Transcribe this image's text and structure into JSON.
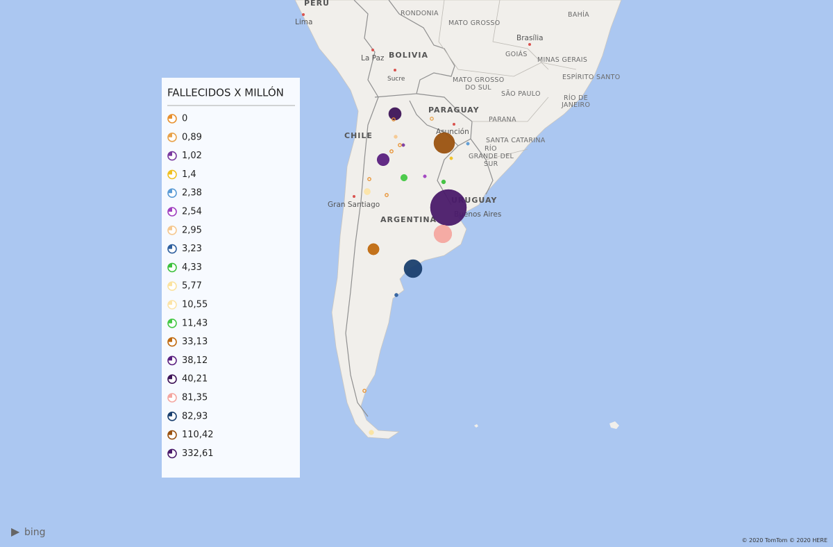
{
  "map_labels": [
    "PERU",
    "Lima",
    "RONDONIA",
    "MATO GROSSO",
    "BAHÍA",
    "Brasília",
    "GOIÁS",
    "MINAS GERAIS",
    "ESPÍRITO SANTO",
    "La Paz",
    "BOLIVIA",
    "Sucre",
    [
      "MATO GROSSO",
      "DO SUL"
    ],
    "SÃO PAULO",
    [
      "RÍO DE",
      "JANEIRO"
    ],
    "PARAGUAY",
    "Asunción",
    "PARANA",
    "SANTA CATARINA",
    [
      "RÍO",
      "GRANDE DEL",
      "SUR"
    ],
    "CHILE",
    "Gran Santiago",
    "ARGENTINA",
    "URUGUAY",
    "Buenos Aires"
  ],
  "legend": {
    "title": "FALLECIDOS X MILLÓN",
    "items": [
      {
        "label": "0",
        "value": 0,
        "color": "#e8902e"
      },
      {
        "label": "0,89",
        "value": 0.89,
        "color": "#e8a24a"
      },
      {
        "label": "1,02",
        "value": 1.02,
        "color": "#7a3aa0"
      },
      {
        "label": "1,4",
        "value": 1.4,
        "color": "#f0c020"
      },
      {
        "label": "2,38",
        "value": 2.38,
        "color": "#5b9bd5"
      },
      {
        "label": "2,54",
        "value": 2.54,
        "color": "#a040c0"
      },
      {
        "label": "2,95",
        "value": 2.95,
        "color": "#f5c890"
      },
      {
        "label": "3,23",
        "value": 3.23,
        "color": "#2e5f9e"
      },
      {
        "label": "4,33",
        "value": 4.33,
        "color": "#3cc03c"
      },
      {
        "label": "5,77",
        "value": 5.77,
        "color": "#fbe3a0"
      },
      {
        "label": "10,55",
        "value": 10.55,
        "color": "#fce4a8"
      },
      {
        "label": "11,43",
        "value": 11.43,
        "color": "#44c844"
      },
      {
        "label": "33,13",
        "value": 33.13,
        "color": "#c06a10"
      },
      {
        "label": "38,12",
        "value": 38.12,
        "color": "#5a2080"
      },
      {
        "label": "40,21",
        "value": 40.21,
        "color": "#3e1458"
      },
      {
        "label": "81,35",
        "value": 81.35,
        "color": "#f4a6a0"
      },
      {
        "label": "82,93",
        "value": 82.93,
        "color": "#1a3f6e"
      },
      {
        "label": "110,42",
        "value": 110.42,
        "color": "#9a5210"
      },
      {
        "label": "332,61",
        "value": 332.61,
        "color": "#4a1a6a"
      }
    ]
  },
  "logo": "bing",
  "credits": "© 2020 TomTom © 2020 HERE"
}
